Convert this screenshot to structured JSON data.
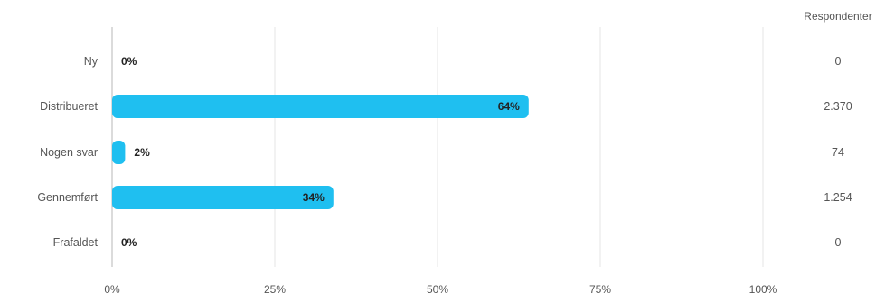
{
  "chart_data": {
    "type": "bar",
    "orientation": "horizontal",
    "categories": [
      "Ny",
      "Distribueret",
      "Nogen svar",
      "Gennemført",
      "Frafaldet"
    ],
    "values": [
      0,
      64,
      2,
      34,
      0
    ],
    "value_labels": [
      "0%",
      "64%",
      "2%",
      "34%",
      "0%"
    ],
    "xlim": [
      0,
      100
    ],
    "x_ticks": [
      "0%",
      "25%",
      "50%",
      "75%",
      "100%"
    ],
    "x_tick_values": [
      0,
      25,
      50,
      75,
      100
    ],
    "grid": true,
    "bar_color": "#1fbff0",
    "grid_color": "#e4e4e4",
    "text_color": "#555555",
    "right_column": {
      "header": "Respondenter",
      "values": [
        "0",
        "2.370",
        "74",
        "1.254",
        "0"
      ]
    }
  }
}
